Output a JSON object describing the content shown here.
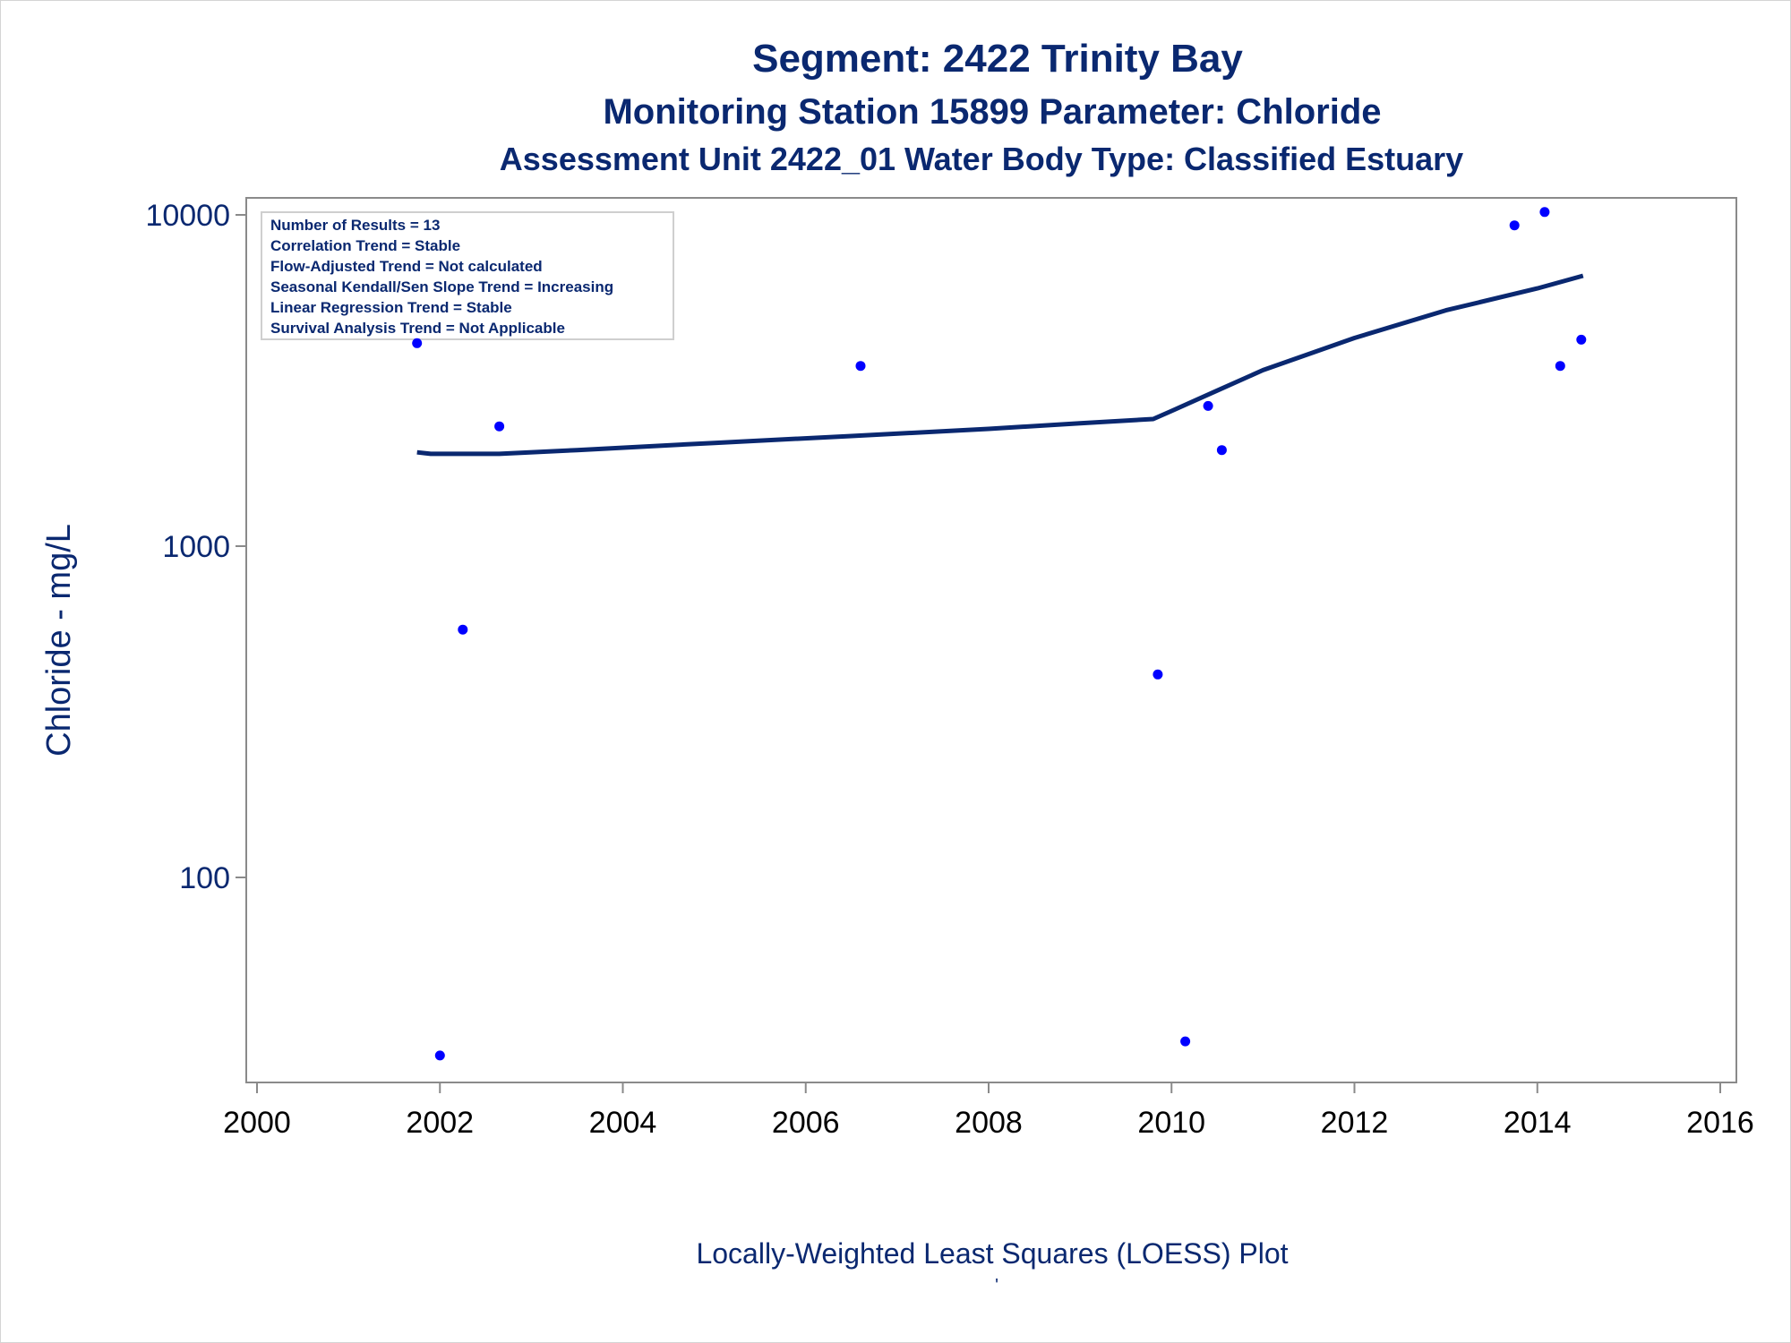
{
  "chart_data": {
    "type": "scatter",
    "title": "Segment: 2422  Trinity Bay",
    "subtitle": "Monitoring Station 15899 Parameter: Chloride",
    "subtitle2": "Assessment Unit 2422_01   Water Body Type: Classified Estuary",
    "xlabel": "Locally-Weighted Least Squares (LOESS) Plot",
    "xlabel_mark": "'",
    "ylabel": "Chloride - mg/L",
    "xlim": [
      2000,
      2016
    ],
    "ylim": [
      30,
      11000
    ],
    "yscale": "log",
    "xticks": [
      "2000",
      "2002",
      "2004",
      "2006",
      "2008",
      "2010",
      "2012",
      "2014",
      "2016"
    ],
    "yticks": [
      "100",
      "1000",
      "10000"
    ],
    "grid": false,
    "point_color": "#0000ff",
    "line_color": "#0a2870",
    "axis_color": "#8a8a8a",
    "text_color": "#0a2870",
    "stats_box": [
      "Number of Results = 13",
      "Correlation Trend = Stable",
      "Flow-Adjusted Trend = Not calculated",
      "Seasonal Kendall/Sen Slope Trend = Increasing",
      "Linear Regression Trend = Stable",
      "Survival Analysis Trend = Not Applicable"
    ],
    "points": [
      {
        "x": 2001.75,
        "y": 4100
      },
      {
        "x": 2002.0,
        "y": 29
      },
      {
        "x": 2002.25,
        "y": 560
      },
      {
        "x": 2002.65,
        "y": 2300
      },
      {
        "x": 2006.6,
        "y": 3500
      },
      {
        "x": 2009.85,
        "y": 410
      },
      {
        "x": 2010.15,
        "y": 32
      },
      {
        "x": 2010.4,
        "y": 2650
      },
      {
        "x": 2010.55,
        "y": 1950
      },
      {
        "x": 2013.75,
        "y": 9300
      },
      {
        "x": 2014.08,
        "y": 10200
      },
      {
        "x": 2014.25,
        "y": 3500
      },
      {
        "x": 2014.48,
        "y": 4200
      }
    ],
    "loess": [
      {
        "x": 2001.75,
        "y": 1920
      },
      {
        "x": 2001.9,
        "y": 1900
      },
      {
        "x": 2002.65,
        "y": 1900
      },
      {
        "x": 2003.5,
        "y": 1950
      },
      {
        "x": 2005.0,
        "y": 2050
      },
      {
        "x": 2006.5,
        "y": 2150
      },
      {
        "x": 2008.0,
        "y": 2260
      },
      {
        "x": 2009.0,
        "y": 2350
      },
      {
        "x": 2009.8,
        "y": 2420
      },
      {
        "x": 2010.0,
        "y": 2560
      },
      {
        "x": 2010.5,
        "y": 2950
      },
      {
        "x": 2011.0,
        "y": 3400
      },
      {
        "x": 2012.0,
        "y": 4250
      },
      {
        "x": 2013.0,
        "y": 5150
      },
      {
        "x": 2014.0,
        "y": 6000
      },
      {
        "x": 2014.5,
        "y": 6550
      }
    ]
  }
}
